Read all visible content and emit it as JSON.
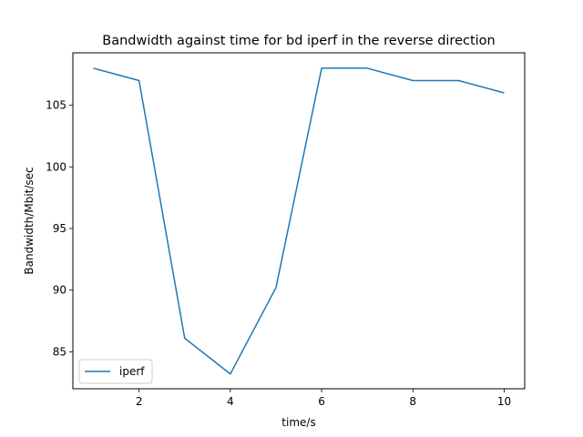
{
  "chart_data": {
    "type": "line",
    "title": "Bandwidth against time for bd iperf in the reverse direction",
    "xlabel": "time/s",
    "ylabel": "Bandwidth/Mbit/sec",
    "xlim": [
      0.55,
      10.45
    ],
    "ylim": [
      82.0,
      109.25
    ],
    "xticks": [
      2,
      4,
      6,
      8,
      10
    ],
    "yticks": [
      85,
      90,
      95,
      100,
      105
    ],
    "grid": false,
    "legend_position": "lower-left",
    "series": [
      {
        "name": "iperf",
        "color": "#1f77b4",
        "x": [
          1,
          2,
          3,
          4,
          5,
          6,
          7,
          8,
          9,
          10
        ],
        "y": [
          108.0,
          107.0,
          86.1,
          83.2,
          90.2,
          108.0,
          108.0,
          107.0,
          107.0,
          106.0
        ]
      }
    ]
  }
}
